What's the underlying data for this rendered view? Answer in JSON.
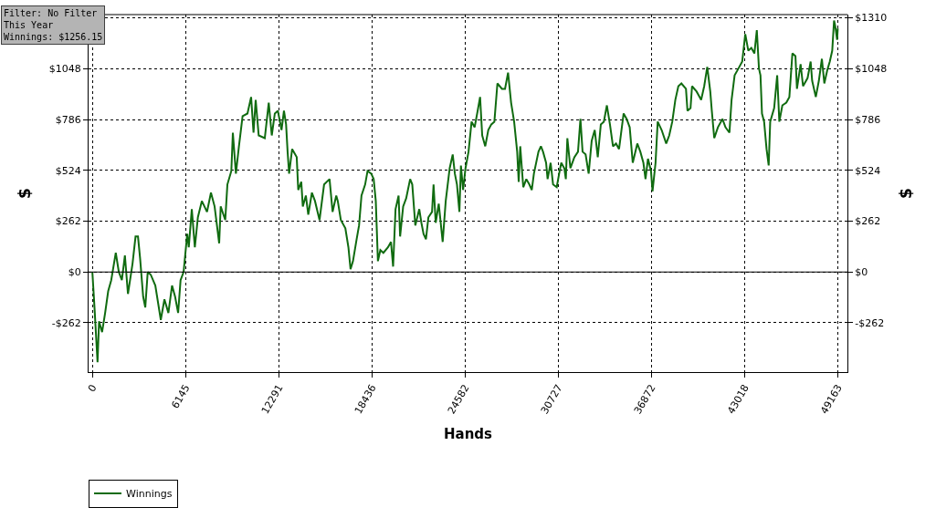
{
  "chart_data": {
    "type": "line",
    "xlabel": "Hands",
    "ylabel": "$",
    "y2label": "$",
    "annotations": [
      "Filter: No Filter",
      "This Year",
      "Winnings: $1256.15"
    ],
    "x": [
      0,
      140,
      341,
      441,
      642,
      842,
      1043,
      1244,
      1544,
      1745,
      1946,
      2146,
      2347,
      2647,
      2848,
      3009,
      3149,
      3350,
      3490,
      3650,
      3851,
      4152,
      4513,
      4753,
      5014,
      5255,
      5456,
      5656,
      5817,
      6017,
      6258,
      6358,
      6558,
      6759,
      6960,
      7220,
      7562,
      7822,
      8062,
      8364,
      8464,
      8765,
      8905,
      9166,
      9266,
      9467,
      9667,
      9908,
      10229,
      10470,
      10630,
      10771,
      10971,
      11372,
      11633,
      11833,
      12034,
      12235,
      12476,
      12636,
      12776,
      12877,
      12977,
      13177,
      13478,
      13578,
      13779,
      13879,
      14080,
      14240,
      14481,
      14682,
      14982,
      15283,
      15644,
      15845,
      16085,
      16186,
      16387,
      16687,
      16888,
      17028,
      17189,
      17429,
      17590,
      17750,
      17991,
      18151,
      18392,
      18553,
      18693,
      18833,
      18994,
      19194,
      19495,
      19695,
      19836,
      19996,
      20197,
      20297,
      20498,
      20698,
      20959,
      21100,
      21300,
      21561,
      21701,
      21842,
      22002,
      22163,
      22403,
      22504,
      22644,
      22845,
      23105,
      23306,
      23567,
      23767,
      23908,
      24048,
      24208,
      24309,
      24449,
      24610,
      24810,
      25011,
      25211,
      25412,
      25572,
      25713,
      25913,
      26114,
      26314,
      26515,
      26715,
      27016,
      27217,
      27418,
      27618,
      27818,
      28019,
      28119,
      28220,
      28420,
      28621,
      28821,
      28982,
      29122,
      29423,
      29584,
      29724,
      29925,
      30025,
      30225,
      30386,
      30627,
      30787,
      30927,
      31128,
      31228,
      31328,
      31529,
      31790,
      32030,
      32191,
      32331,
      32532,
      32733,
      32933,
      33134,
      33334,
      33535,
      33736,
      33936,
      34137,
      34337,
      34538,
      34738,
      35039,
      35240,
      35440,
      35641,
      35942,
      36142,
      36343,
      36483,
      36644,
      36844,
      36944,
      37145,
      37286,
      37546,
      37847,
      38047,
      38248,
      38449,
      38649,
      38850,
      39151,
      39251,
      39452,
      39552,
      39853,
      40153,
      40354,
      40555,
      40755,
      40856,
      41016,
      41257,
      41557,
      41758,
      42019,
      42159,
      42360,
      42561,
      42861,
      43062,
      43262,
      43463,
      43664,
      43824,
      43965,
      44065,
      44165,
      44306,
      44466,
      44607,
      44707,
      44968,
      45168,
      45309,
      45509,
      45770,
      45970,
      46171,
      46371,
      46471,
      46712,
      46872,
      47173,
      47374,
      47474,
      47715,
      47916,
      48116,
      48276,
      48477,
      48637,
      48798,
      48918,
      48998,
      49118,
      49163
    ],
    "series": [
      {
        "name": "Winnings",
        "color": "#106b10",
        "values": [
          0,
          -183,
          -465,
          -254,
          -310,
          -211,
          -99,
          -42,
          99,
          0,
          -42,
          85,
          -113,
          42,
          183,
          183,
          70,
          -127,
          -183,
          0,
          -14,
          -70,
          -247,
          -141,
          -211,
          -70,
          -127,
          -211,
          -42,
          0,
          197,
          127,
          324,
          127,
          282,
          366,
          310,
          409,
          338,
          148,
          338,
          268,
          451,
          521,
          718,
          507,
          648,
          803,
          817,
          902,
          718,
          887,
          704,
          690,
          873,
          704,
          817,
          831,
          732,
          831,
          761,
          620,
          507,
          634,
          592,
          423,
          465,
          338,
          394,
          296,
          409,
          366,
          268,
          451,
          479,
          310,
          394,
          366,
          268,
          225,
          127,
          14,
          56,
          169,
          240,
          394,
          451,
          521,
          507,
          479,
          366,
          56,
          113,
          99,
          127,
          155,
          28,
          324,
          394,
          183,
          338,
          380,
          479,
          451,
          240,
          324,
          254,
          197,
          169,
          282,
          310,
          451,
          254,
          352,
          155,
          366,
          535,
          606,
          507,
          451,
          310,
          549,
          423,
          535,
          620,
          775,
          746,
          831,
          902,
          704,
          648,
          732,
          761,
          775,
          972,
          944,
          944,
          1028,
          873,
          775,
          620,
          465,
          648,
          437,
          479,
          451,
          423,
          507,
          620,
          648,
          620,
          563,
          479,
          563,
          451,
          437,
          507,
          563,
          535,
          479,
          690,
          535,
          592,
          620,
          789,
          620,
          606,
          507,
          676,
          732,
          592,
          761,
          775,
          859,
          761,
          648,
          662,
          634,
          817,
          789,
          746,
          563,
          662,
          620,
          563,
          479,
          584,
          521,
          416,
          563,
          775,
          732,
          662,
          704,
          775,
          887,
          958,
          972,
          944,
          831,
          845,
          958,
          930,
          887,
          958,
          1057,
          930,
          831,
          690,
          746,
          789,
          746,
          718,
          887,
          1014,
          1042,
          1085,
          1226,
          1141,
          1155,
          1127,
          1247,
          1049,
          1014,
          817,
          775,
          634,
          549,
          775,
          845,
          1014,
          775,
          859,
          873,
          902,
          1127,
          1113,
          944,
          1071,
          958,
          1000,
          1085,
          986,
          902,
          986,
          1099,
          972,
          1042,
          1085,
          1141,
          1296,
          1268,
          1197,
          1256
        ]
      }
    ],
    "xlim": [
      -250,
      49800
    ],
    "xticks": [
      0,
      6145,
      12291,
      18436,
      24582,
      30727,
      36872,
      43018,
      49163
    ],
    "ylim": [
      -516,
      1327
    ],
    "yticks": [
      {
        "value": -262,
        "label": "-$262"
      },
      {
        "value": 0,
        "label": "$0"
      },
      {
        "value": 262,
        "label": "$262"
      },
      {
        "value": 524,
        "label": "$524"
      },
      {
        "value": 786,
        "label": "$786"
      },
      {
        "value": 1048,
        "label": "$1048"
      },
      {
        "value": 1310,
        "label": null
      }
    ],
    "y2lim": [
      -516,
      1327
    ],
    "y2ticks": [
      {
        "value": -262,
        "label": "-$262"
      },
      {
        "value": 0,
        "label": "$0"
      },
      {
        "value": 262,
        "label": "$262"
      },
      {
        "value": 524,
        "label": "$524"
      },
      {
        "value": 786,
        "label": "$786"
      },
      {
        "value": 1048,
        "label": "$1048"
      },
      {
        "value": 1310,
        "label": "$1310"
      }
    ],
    "ref_lines": [
      {
        "axis": "y",
        "value": 0,
        "color": "#000000"
      }
    ],
    "grid": true,
    "legend": "bottom left",
    "line_style": "solid",
    "marker": "none"
  }
}
